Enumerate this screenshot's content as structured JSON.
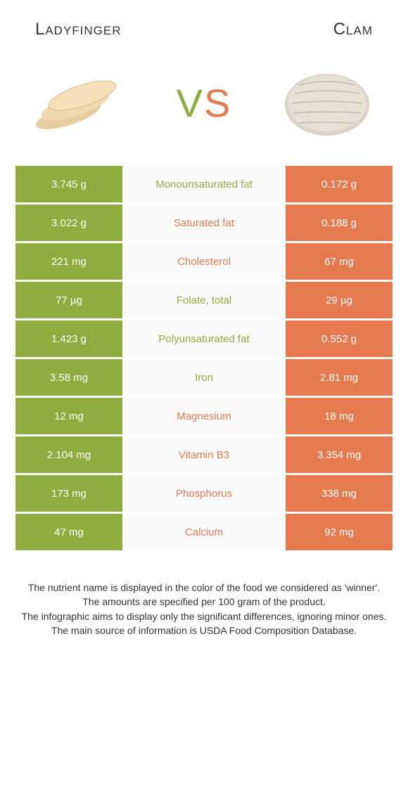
{
  "colors": {
    "green": "#8fad3e",
    "orange": "#e67a4f",
    "row_bg": "#fafafa",
    "text": "#333333",
    "white": "#ffffff"
  },
  "header": {
    "left_title": "Ladyfinger",
    "right_title": "Clam"
  },
  "vs": {
    "v": "V",
    "s": "S"
  },
  "rows": [
    {
      "left": "3.745 g",
      "label": "Monounsaturated fat",
      "right": "0.172 g",
      "winner": "left"
    },
    {
      "left": "3.022 g",
      "label": "Saturated fat",
      "right": "0.188 g",
      "winner": "right"
    },
    {
      "left": "221 mg",
      "label": "Cholesterol",
      "right": "67 mg",
      "winner": "right"
    },
    {
      "left": "77 µg",
      "label": "Folate, total",
      "right": "29 µg",
      "winner": "left"
    },
    {
      "left": "1.423 g",
      "label": "Polyunsaturated fat",
      "right": "0.552 g",
      "winner": "left"
    },
    {
      "left": "3.58 mg",
      "label": "Iron",
      "right": "2.81 mg",
      "winner": "left"
    },
    {
      "left": "12 mg",
      "label": "Magnesium",
      "right": "18 mg",
      "winner": "right"
    },
    {
      "left": "2.104 mg",
      "label": "Vitamin B3",
      "right": "3.354 mg",
      "winner": "right"
    },
    {
      "left": "173 mg",
      "label": "Phosphorus",
      "right": "338 mg",
      "winner": "right"
    },
    {
      "left": "47 mg",
      "label": "Calcium",
      "right": "92 mg",
      "winner": "right"
    }
  ],
  "footer": {
    "line1": "The nutrient name is displayed in the color of the food we considered as 'winner'.",
    "line2": "The amounts are specified per 100 gram of the product.",
    "line3": "The infographic aims to display only the significant differences, ignoring minor ones.",
    "line4": "The main source of information is USDA Food Composition Database."
  }
}
